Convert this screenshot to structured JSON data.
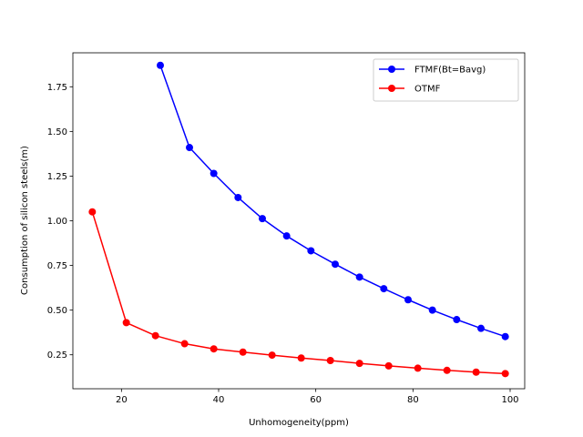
{
  "chart_data": {
    "type": "line",
    "xlabel": "Unhomogeneity(ppm)",
    "ylabel": "Consumption of silicon steels(m)",
    "xlim": [
      10,
      103
    ],
    "ylim": [
      0.06,
      1.94
    ],
    "xticks": [
      20,
      40,
      60,
      80,
      100
    ],
    "yticks": [
      0.25,
      0.5,
      0.75,
      1.0,
      1.25,
      1.5,
      1.75
    ],
    "ytick_labels": [
      "0.25",
      "0.50",
      "0.75",
      "1.00",
      "1.25",
      "1.50",
      "1.75"
    ],
    "grid": false,
    "legend_position": "top-right",
    "series": [
      {
        "name": "FTMF(Bt=Bavg)",
        "color": "#0000ff",
        "x": [
          28,
          34,
          39,
          44,
          49,
          54,
          59,
          64,
          69,
          74,
          79,
          84,
          89,
          94,
          99
        ],
        "y": [
          1.87,
          1.41,
          1.265,
          1.13,
          1.012,
          0.915,
          0.832,
          0.757,
          0.685,
          0.62,
          0.558,
          0.5,
          0.447,
          0.398,
          0.352
        ]
      },
      {
        "name": "OTMF",
        "color": "#ff0000",
        "x": [
          14,
          21,
          27,
          33,
          39,
          45,
          51,
          57,
          63,
          69,
          75,
          81,
          87,
          93,
          99
        ],
        "y": [
          1.05,
          0.43,
          0.357,
          0.312,
          0.283,
          0.265,
          0.248,
          0.232,
          0.218,
          0.202,
          0.188,
          0.175,
          0.163,
          0.153,
          0.145
        ]
      }
    ]
  }
}
